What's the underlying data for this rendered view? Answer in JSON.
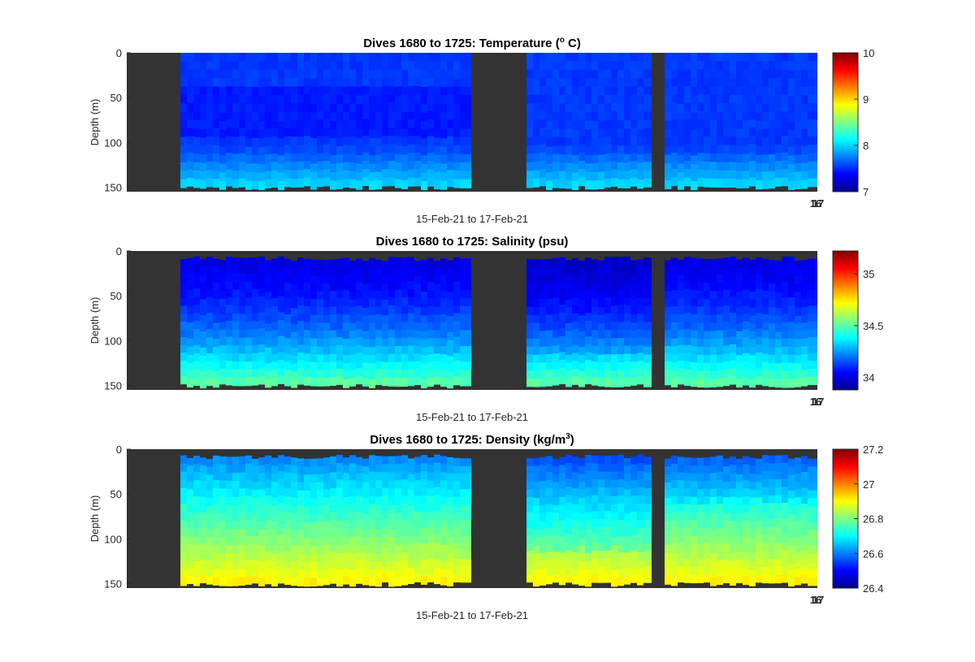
{
  "figure": {
    "background": "#ffffff",
    "land_color": "#333333"
  },
  "chart_data": [
    {
      "type": "heatmap",
      "title": "Dives 1680 to 1725: Temperature (",
      "title_sup": "o",
      "title_after": " C)",
      "xlabel": "15-Feb-21 to 17-Feb-21",
      "ylabel": "Depth (m)",
      "y_ticks": [
        "0",
        "50",
        "100",
        "150"
      ],
      "y_tick_values": [
        0,
        50,
        100,
        150
      ],
      "ylim": [
        0,
        155
      ],
      "x_corner_labels": [
        "16",
        "17"
      ],
      "colorbar": {
        "min": 7,
        "max": 10,
        "ticks": [
          "7",
          "8",
          "9",
          "10"
        ],
        "tick_values": [
          7,
          8,
          9,
          10
        ]
      },
      "variable": "temperature"
    },
    {
      "type": "heatmap",
      "title": "Dives 1680 to 1725: Salinity (psu)",
      "title_sup": "",
      "title_after": "",
      "xlabel": "15-Feb-21 to 17-Feb-21",
      "ylabel": "Depth (m)",
      "y_ticks": [
        "0",
        "50",
        "100",
        "150"
      ],
      "y_tick_values": [
        0,
        50,
        100,
        150
      ],
      "ylim": [
        0,
        155
      ],
      "x_corner_labels": [
        "16",
        "17"
      ],
      "colorbar": {
        "min": 33.88,
        "max": 35.22,
        "ticks": [
          "34",
          "34.5",
          "35"
        ],
        "tick_values": [
          34,
          34.5,
          35
        ]
      },
      "variable": "salinity"
    },
    {
      "type": "heatmap",
      "title": "Dives 1680 to 1725: Density (kg/m",
      "title_sup": "3",
      "title_after": ")",
      "xlabel": "15-Feb-21 to 17-Feb-21",
      "ylabel": "Depth (m)",
      "y_ticks": [
        "0",
        "50",
        "100",
        "150"
      ],
      "y_tick_values": [
        0,
        50,
        100,
        150
      ],
      "ylim": [
        0,
        155
      ],
      "x_corner_labels": [
        "16",
        "17"
      ],
      "colorbar": {
        "min": 26.4,
        "max": 27.2,
        "ticks": [
          "26.4",
          "26.6",
          "26.8",
          "27",
          "27.2"
        ],
        "tick_values": [
          26.4,
          26.6,
          26.8,
          27,
          27.2
        ]
      },
      "variable": "density"
    }
  ]
}
